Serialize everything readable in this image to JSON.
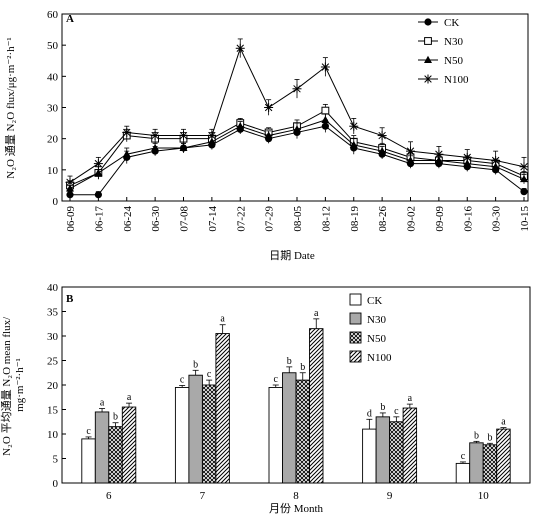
{
  "panel_a": {
    "label": "A",
    "xlabel": "日期 Date",
    "ylabel": "N₂O 通量 N₂O flux/μg·m⁻²·h⁻¹"
  },
  "panel_b": {
    "label": "B",
    "xlabel": "月份 Month",
    "ylabel": "N₂O 平均通量 N₂O mean flux/ mg·m⁻²·h⁻¹"
  },
  "chart_data": [
    {
      "type": "line",
      "title": "A",
      "xlabel": "日期 Date",
      "ylabel": "N₂O 通量 N₂O flux/μg·m⁻²·h⁻¹",
      "categories": [
        "06-09",
        "06-17",
        "06-24",
        "06-30",
        "07-08",
        "07-14",
        "07-22",
        "07-29",
        "08-05",
        "08-12",
        "08-19",
        "08-26",
        "09-02",
        "09-09",
        "09-16",
        "09-30",
        "10-15"
      ],
      "ylim": [
        0,
        60
      ],
      "yticks": [
        0,
        10,
        20,
        30,
        40,
        50,
        60
      ],
      "legend_position": "top-right",
      "series": [
        {
          "name": "CK",
          "marker": "circle-filled",
          "values": [
            2,
            2,
            14,
            16,
            17,
            18,
            23,
            20,
            22,
            24,
            17,
            15,
            12,
            12,
            11,
            10,
            3
          ],
          "errors": [
            1,
            1,
            2,
            1.5,
            1.5,
            1.5,
            1.5,
            1.5,
            2,
            2,
            2,
            1.5,
            1.5,
            1.5,
            1.5,
            1.5,
            1
          ]
        },
        {
          "name": "N30",
          "marker": "square-open",
          "values": [
            5,
            9,
            21,
            20,
            20,
            20,
            25,
            22,
            24,
            29,
            19,
            17,
            14,
            13,
            13,
            12,
            8
          ],
          "errors": [
            1.5,
            2,
            2,
            2,
            2,
            2,
            1.5,
            1.5,
            2,
            2,
            2,
            1.5,
            1.5,
            1.5,
            1.5,
            1.5,
            1.5
          ]
        },
        {
          "name": "N50",
          "marker": "triangle-filled",
          "values": [
            4,
            9,
            15,
            17,
            17,
            19,
            24,
            21,
            23,
            26,
            18,
            16,
            13,
            13,
            12,
            11,
            7
          ],
          "errors": [
            1,
            2,
            2,
            1.5,
            1.5,
            1.5,
            1.5,
            1.5,
            2,
            2,
            2,
            1.5,
            1.5,
            1.5,
            1.5,
            1.5,
            1.5
          ]
        },
        {
          "name": "N100",
          "marker": "asterisk",
          "values": [
            6,
            12,
            22,
            21,
            21,
            21,
            49,
            30,
            36,
            43,
            24,
            21,
            16,
            15,
            14,
            13,
            11
          ],
          "errors": [
            2,
            2,
            2,
            2,
            2,
            2,
            3,
            2.5,
            3,
            3,
            2.5,
            2.5,
            3,
            2.5,
            2.5,
            3,
            3
          ]
        }
      ]
    },
    {
      "type": "bar",
      "title": "B",
      "xlabel": "月份 Month",
      "ylabel": "N₂O 平均通量 N₂O mean flux/ mg·m⁻²·h⁻¹",
      "categories": [
        "6",
        "7",
        "8",
        "9",
        "10"
      ],
      "ylim": [
        0,
        40
      ],
      "yticks": [
        0,
        5,
        10,
        15,
        20,
        25,
        30,
        35,
        40
      ],
      "legend_position": "top-right",
      "series": [
        {
          "name": "CK",
          "fill": "white",
          "values": [
            9,
            19.5,
            19.5,
            11,
            4
          ],
          "errors": [
            0.4,
            0.4,
            0.5,
            2,
            0.3
          ],
          "letters": [
            "c",
            "c",
            "c",
            "d",
            "c"
          ]
        },
        {
          "name": "N30",
          "fill": "gray",
          "values": [
            14.5,
            22,
            22.5,
            13.5,
            8.2
          ],
          "errors": [
            0.7,
            1,
            1.2,
            0.8,
            0.3
          ],
          "letters": [
            "a",
            "b",
            "b",
            "b",
            "b"
          ]
        },
        {
          "name": "N50",
          "fill": "cross-hatch",
          "values": [
            11.5,
            20,
            21,
            12.5,
            7.8
          ],
          "errors": [
            0.8,
            1,
            1.5,
            1,
            0.3
          ],
          "letters": [
            "b",
            "c",
            "b",
            "c",
            "b"
          ]
        },
        {
          "name": "N100",
          "fill": "diagonal-hatch",
          "values": [
            15.5,
            30.5,
            31.5,
            15.3,
            11
          ],
          "errors": [
            0.8,
            1.8,
            2,
            0.8,
            0.3
          ],
          "letters": [
            "a",
            "a",
            "a",
            "a",
            "a"
          ]
        }
      ]
    }
  ]
}
